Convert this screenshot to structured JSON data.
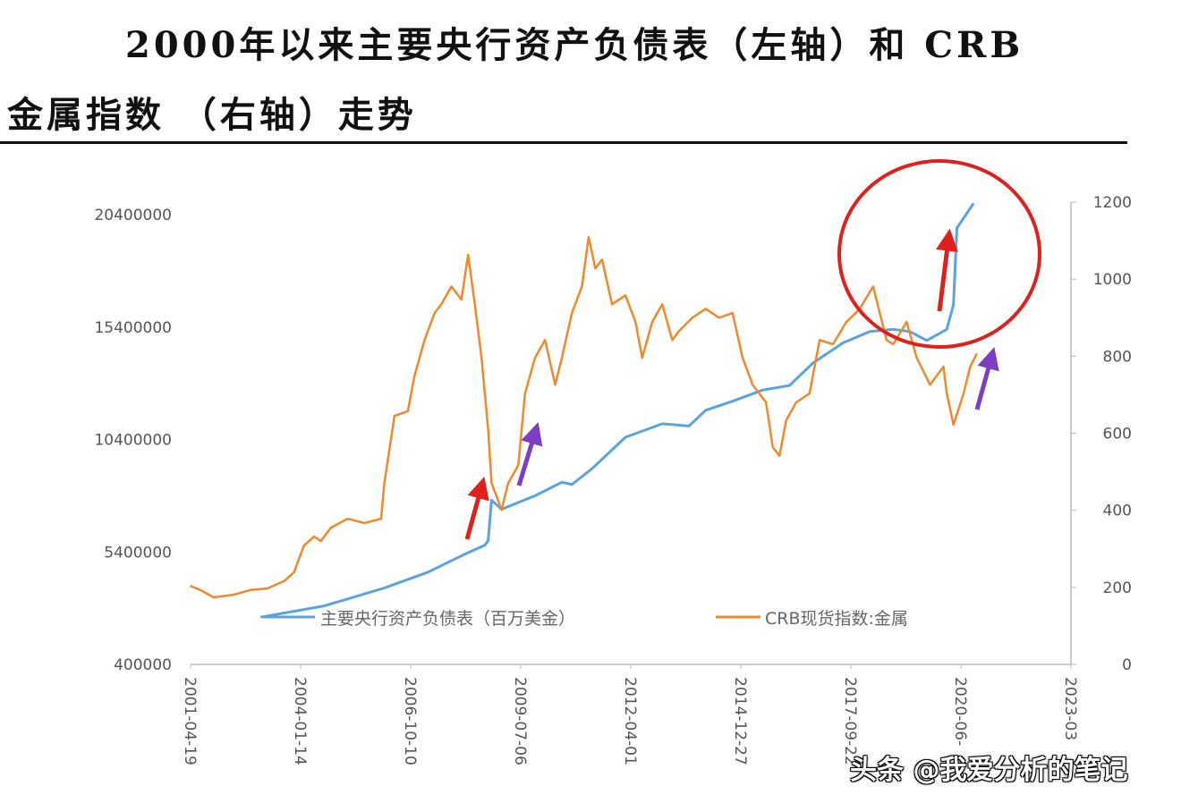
{
  "title_line1": "2000年以来主要央行资产负债表（左轴）和 CRB",
  "title_line2": "金属指数 （右轴）走势",
  "watermark": "头条 @我爱分析的笔记",
  "chart_data": {
    "type": "line",
    "title": "",
    "x_tick_labels": [
      "2001-04-19",
      "2004-01-14",
      "2006-10-10",
      "2009-07-06",
      "2012-04-01",
      "2014-12-27",
      "2017-09-22",
      "2020-06-",
      "2023-03"
    ],
    "y_left": {
      "ticks": [
        "400000",
        "5400000",
        "10400000",
        "15400000",
        "20400000"
      ],
      "range": [
        400000,
        20400000
      ]
    },
    "y_right": {
      "ticks": [
        "0",
        "200",
        "400",
        "600",
        "800",
        "1000",
        "1200"
      ],
      "range": [
        0,
        1200
      ]
    },
    "grid": false,
    "legend_placement": "bottom-inside",
    "colors": {
      "balance_sheet": "#5ba3dd",
      "crb_metals": "#f0882c",
      "annotation_red": "#e0201c",
      "annotation_purple": "#7b3fc4"
    },
    "series": [
      {
        "name": "主要央行资产负债表（百万美金）",
        "axis": "left",
        "points": [
          [
            "2003-01",
            2500000
          ],
          [
            "2004-08",
            3000000
          ],
          [
            "2006-02",
            3800000
          ],
          [
            "2007-03",
            4500000
          ],
          [
            "2008-02",
            5300000
          ],
          [
            "2008-08",
            5700000
          ],
          [
            "2008-09",
            5900000
          ],
          [
            "2008-10",
            7700000
          ],
          [
            "2009-01",
            7300000
          ],
          [
            "2009-11",
            7900000
          ],
          [
            "2010-07",
            8500000
          ],
          [
            "2010-10",
            8400000
          ],
          [
            "2011-04",
            9100000
          ],
          [
            "2012-02",
            10500000
          ],
          [
            "2013-01",
            11100000
          ],
          [
            "2013-09",
            11000000
          ],
          [
            "2014-02",
            11700000
          ],
          [
            "2014-10",
            12100000
          ],
          [
            "2015-07",
            12600000
          ],
          [
            "2016-03",
            12800000
          ],
          [
            "2016-10",
            13800000
          ],
          [
            "2017-07",
            14700000
          ],
          [
            "2018-03",
            15200000
          ],
          [
            "2018-10",
            15300000
          ],
          [
            "2019-03",
            15200000
          ],
          [
            "2019-08",
            14800000
          ],
          [
            "2020-02",
            15300000
          ],
          [
            "2020-04",
            16400000
          ],
          [
            "2020-05",
            19800000
          ],
          [
            "2020-10",
            20900000
          ]
        ]
      },
      {
        "name": "CRB现货指数:金属",
        "axis": "right",
        "points": [
          [
            "2001-04",
            204
          ],
          [
            "2001-07",
            193
          ],
          [
            "2001-11",
            174
          ],
          [
            "2002-05",
            181
          ],
          [
            "2002-10",
            193
          ],
          [
            "2003-03",
            197
          ],
          [
            "2003-08",
            216
          ],
          [
            "2003-11",
            239
          ],
          [
            "2004-02",
            309
          ],
          [
            "2004-05",
            332
          ],
          [
            "2004-07",
            320
          ],
          [
            "2004-10",
            355
          ],
          [
            "2005-03",
            378
          ],
          [
            "2005-08",
            367
          ],
          [
            "2006-01",
            378
          ],
          [
            "2006-02",
            471
          ],
          [
            "2006-05",
            645
          ],
          [
            "2006-09",
            657
          ],
          [
            "2006-11",
            749
          ],
          [
            "2007-02",
            842
          ],
          [
            "2007-05",
            912
          ],
          [
            "2007-07",
            935
          ],
          [
            "2007-10",
            981
          ],
          [
            "2008-01",
            947
          ],
          [
            "2008-03",
            1063
          ],
          [
            "2008-05",
            935
          ],
          [
            "2008-07",
            796
          ],
          [
            "2008-09",
            610
          ],
          [
            "2008-10",
            471
          ],
          [
            "2009-01",
            401
          ],
          [
            "2009-03",
            471
          ],
          [
            "2009-06",
            517
          ],
          [
            "2009-08",
            703
          ],
          [
            "2009-11",
            796
          ],
          [
            "2010-02",
            842
          ],
          [
            "2010-05",
            726
          ],
          [
            "2010-07",
            796
          ],
          [
            "2010-10",
            912
          ],
          [
            "2011-01",
            981
          ],
          [
            "2011-03",
            1109
          ],
          [
            "2011-05",
            1028
          ],
          [
            "2011-07",
            1051
          ],
          [
            "2011-10",
            935
          ],
          [
            "2012-02",
            958
          ],
          [
            "2012-05",
            889
          ],
          [
            "2012-07",
            796
          ],
          [
            "2012-10",
            889
          ],
          [
            "2013-01",
            935
          ],
          [
            "2013-04",
            842
          ],
          [
            "2013-06",
            865
          ],
          [
            "2013-10",
            900
          ],
          [
            "2014-02",
            923
          ],
          [
            "2014-06",
            900
          ],
          [
            "2014-10",
            912
          ],
          [
            "2015-01",
            796
          ],
          [
            "2015-04",
            726
          ],
          [
            "2015-08",
            680
          ],
          [
            "2015-10",
            564
          ],
          [
            "2015-12",
            541
          ],
          [
            "2016-02",
            633
          ],
          [
            "2016-05",
            680
          ],
          [
            "2016-09",
            703
          ],
          [
            "2016-12",
            842
          ],
          [
            "2017-04",
            831
          ],
          [
            "2017-08",
            889
          ],
          [
            "2017-12",
            923
          ],
          [
            "2018-04",
            981
          ],
          [
            "2018-08",
            842
          ],
          [
            "2018-10",
            831
          ],
          [
            "2019-02",
            889
          ],
          [
            "2019-05",
            796
          ],
          [
            "2019-09",
            726
          ],
          [
            "2020-01",
            773
          ],
          [
            "2020-02",
            703
          ],
          [
            "2020-04",
            622
          ],
          [
            "2020-07",
            703
          ],
          [
            "2020-09",
            773
          ],
          [
            "2020-11",
            807
          ]
        ]
      }
    ]
  }
}
